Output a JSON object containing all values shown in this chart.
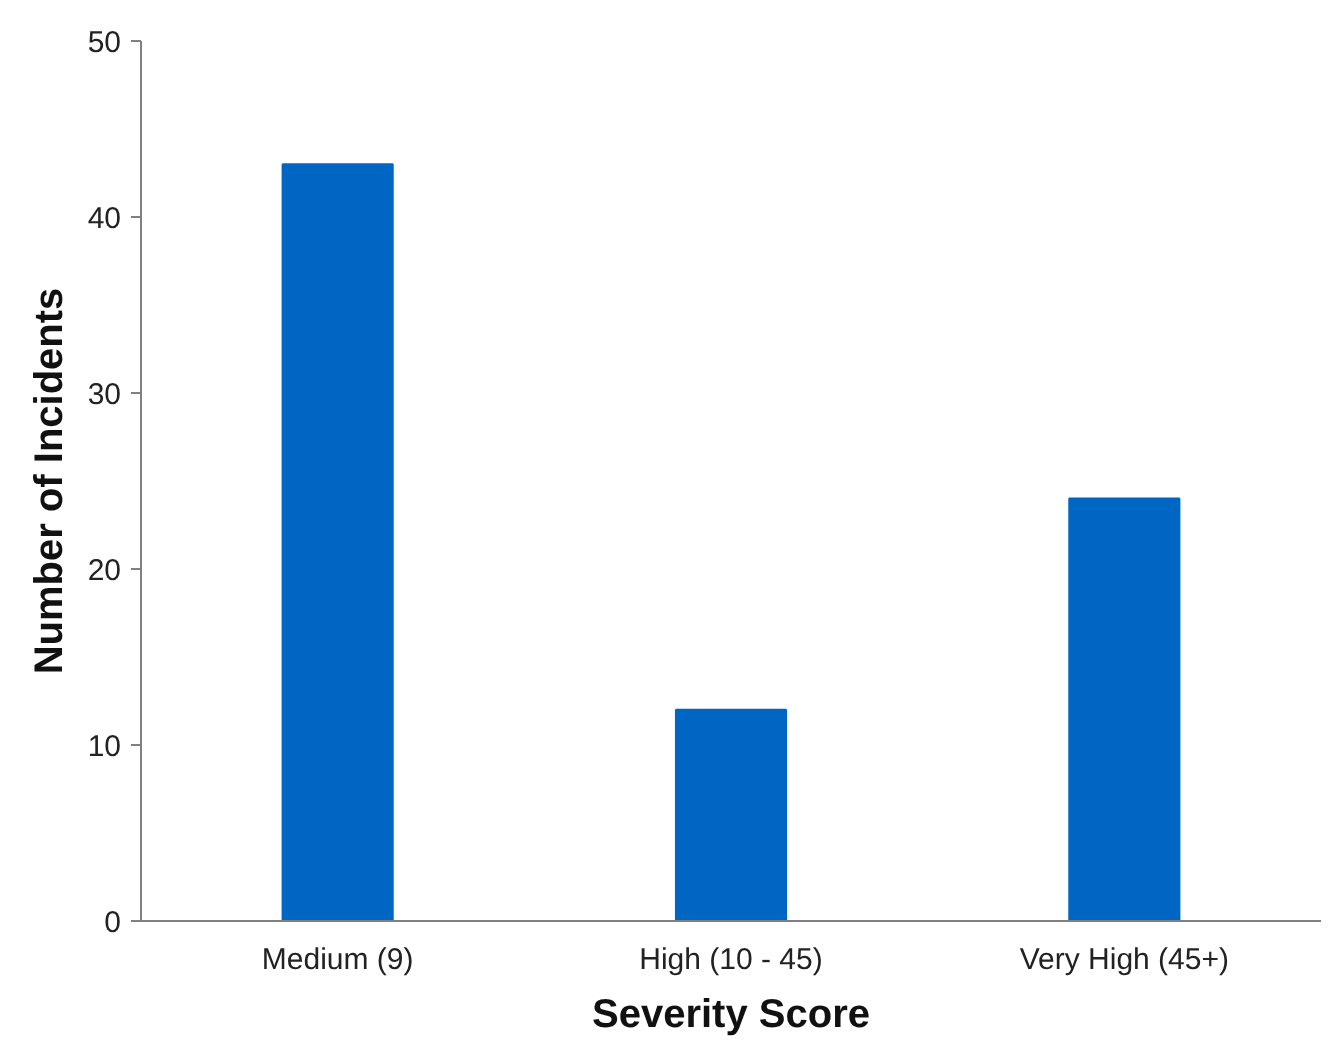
{
  "chart_data": {
    "type": "bar",
    "xlabel": "Severity Score",
    "ylabel": "Number of Incidents",
    "categories": [
      "Medium (9)",
      "High (10 - 45)",
      "Very High (45+)"
    ],
    "values": [
      43,
      12,
      24
    ],
    "color": "#0066c4",
    "ylim": [
      0,
      50
    ],
    "yticks": [
      0,
      10,
      20,
      30,
      40,
      50
    ],
    "grid": false
  }
}
